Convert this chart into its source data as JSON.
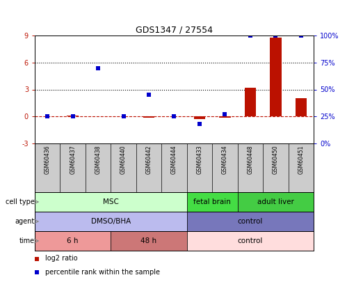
{
  "title": "GDS1347 / 27554",
  "samples": [
    "GSM60436",
    "GSM60437",
    "GSM60438",
    "GSM60440",
    "GSM60442",
    "GSM60444",
    "GSM60433",
    "GSM60434",
    "GSM60448",
    "GSM60450",
    "GSM60451"
  ],
  "log2_ratio": [
    0.0,
    0.1,
    0.0,
    0.0,
    -0.12,
    0.0,
    -0.32,
    -0.12,
    3.2,
    8.8,
    2.0
  ],
  "percentile_rank": [
    25,
    25,
    70,
    25,
    45,
    25,
    18,
    27,
    100,
    100,
    100
  ],
  "log2_ylim": [
    -3,
    9
  ],
  "pct_ylim": [
    0,
    100
  ],
  "log2_yticks": [
    -3,
    0,
    3,
    6,
    9
  ],
  "pct_yticks": [
    0,
    25,
    50,
    75,
    100
  ],
  "pct_yticklabels": [
    "0%",
    "25%",
    "50%",
    "75%",
    "100%"
  ],
  "dotted_lines_log2": [
    3,
    6
  ],
  "bar_color": "#bb1100",
  "square_color": "#0000cc",
  "cell_type_groups": [
    {
      "label": "MSC",
      "start": 0,
      "end": 5,
      "color": "#ccffcc"
    },
    {
      "label": "fetal brain",
      "start": 6,
      "end": 7,
      "color": "#44dd44"
    },
    {
      "label": "adult liver",
      "start": 8,
      "end": 10,
      "color": "#44cc44"
    }
  ],
  "agent_groups": [
    {
      "label": "DMSO/BHA",
      "start": 0,
      "end": 5,
      "color": "#bbbbee"
    },
    {
      "label": "control",
      "start": 6,
      "end": 10,
      "color": "#7777bb"
    }
  ],
  "time_groups": [
    {
      "label": "6 h",
      "start": 0,
      "end": 2,
      "color": "#ee9999"
    },
    {
      "label": "48 h",
      "start": 3,
      "end": 5,
      "color": "#cc7777"
    },
    {
      "label": "control",
      "start": 6,
      "end": 10,
      "color": "#ffdddd"
    }
  ],
  "row_labels": [
    "cell type",
    "agent",
    "time"
  ],
  "legend_red": "log2 ratio",
  "legend_blue": "percentile rank within the sample",
  "sample_bg": "#cccccc"
}
